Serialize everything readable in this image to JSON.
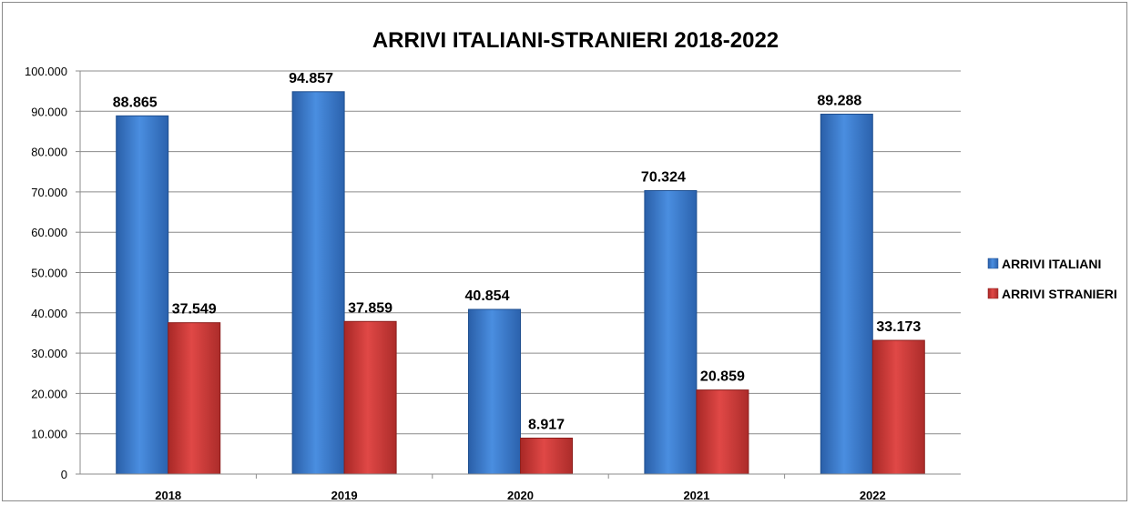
{
  "chart_data": {
    "type": "bar",
    "title": "ARRIVI ITALIANI-STRANIERI 2018-2022",
    "categories": [
      "2018",
      "2019",
      "2020",
      "2021",
      "2022"
    ],
    "series": [
      {
        "name": "ARRIVI   ITALIANI",
        "values": [
          88865,
          94857,
          40854,
          70324,
          89288
        ],
        "labels": [
          "88.865",
          "94.857",
          "40.854",
          "70.324",
          "89.288"
        ],
        "color": "#3e7fd1"
      },
      {
        "name": "ARRIVI STRANIERI",
        "values": [
          37549,
          37859,
          8917,
          20859,
          33173
        ],
        "labels": [
          "37.549",
          "37.859",
          "8.917",
          "20.859",
          "33.173"
        ],
        "color": "#d23c3a"
      }
    ],
    "yticks": [
      "0",
      "10.000",
      "20.000",
      "30.000",
      "40.000",
      "50.000",
      "60.000",
      "70.000",
      "80.000",
      "90.000",
      "100.000"
    ],
    "ylim": [
      0,
      100000
    ],
    "grid": true,
    "legend": "right"
  }
}
